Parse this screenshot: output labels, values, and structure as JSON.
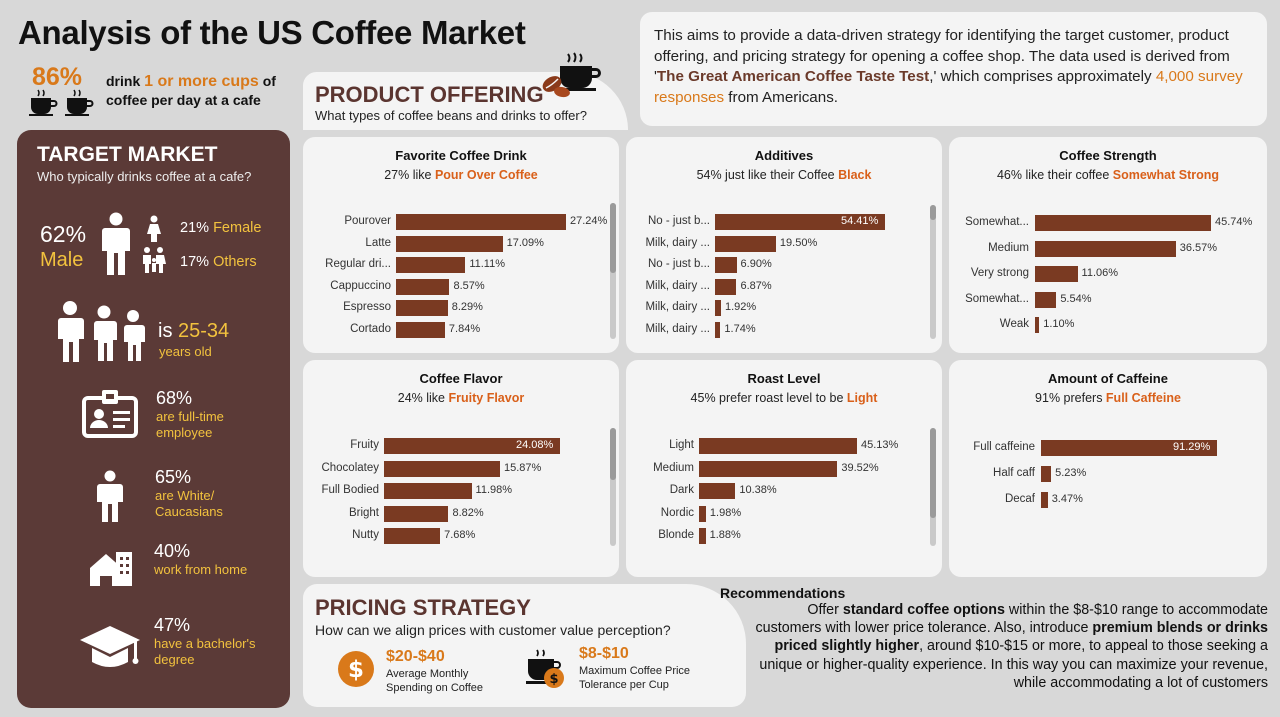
{
  "header": {
    "title": "Analysis of the US Coffee Market",
    "kpi_pct": "86%",
    "kpi_text_pre": "drink ",
    "kpi_text_hl": "1 or more cups",
    "kpi_text_post": " of coffee per day at a cafe",
    "intro_pre": "This aims to provide a data-driven strategy for identifying the target customer, product offering, and pricing strategy for opening a coffee shop. The data used is derived from '",
    "intro_bold": "The Great American Coffee Taste Test",
    "intro_mid": ",' which comprises approximately ",
    "intro_hl": "4,000 survey responses",
    "intro_post": " from Americans."
  },
  "product_offering": {
    "title": "PRODUCT OFFERING",
    "subtitle": "What types of coffee beans and drinks to offer?"
  },
  "target_market": {
    "title": "TARGET MARKET",
    "subtitle": "Who typically drinks coffee at a cafe?",
    "male_pct": "62%",
    "male_label": "Male",
    "female_pct": "21%",
    "female_label": "Female",
    "others_pct": "17%",
    "others_label": "Others",
    "age_pre": "is",
    "age_value": "25-34",
    "age_post": "years old",
    "stats": [
      {
        "pct": "68%",
        "label": "are full-time employee"
      },
      {
        "pct": "65%",
        "label": "are White/ Caucasians"
      },
      {
        "pct": "40%",
        "label": "work from home"
      },
      {
        "pct": "47%",
        "label": "have a bachelor's degree"
      }
    ]
  },
  "chart_data": [
    {
      "type": "bar",
      "title": "Favorite Coffee Drink",
      "subtitle_pre": "27% like",
      "subtitle_hl": "Pour Over Coffee",
      "categories": [
        "Pourover",
        "Latte",
        "Regular dri...",
        "Cappuccino",
        "Espresso",
        "Cortado"
      ],
      "values": [
        27.24,
        17.09,
        11.11,
        8.57,
        8.29,
        7.84
      ],
      "labels": [
        "27.24%",
        "17.09%",
        "11.11%",
        "8.57%",
        "8.29%",
        "7.84%"
      ]
    },
    {
      "type": "bar",
      "title": "Additives",
      "subtitle_pre": "54% just like their Coffee",
      "subtitle_hl": "Black",
      "categories": [
        "No - just b...",
        "Milk, dairy ...",
        "No - just b...",
        "Milk, dairy ...",
        "Milk, dairy ...",
        "Milk, dairy ..."
      ],
      "values": [
        54.41,
        19.5,
        6.9,
        6.87,
        1.92,
        1.74
      ],
      "labels": [
        "54.41%",
        "19.50%",
        "6.90%",
        "6.87%",
        "1.92%",
        "1.74%"
      ]
    },
    {
      "type": "bar",
      "title": "Coffee Strength",
      "subtitle_pre": "46% like their coffee",
      "subtitle_hl": "Somewhat Strong",
      "categories": [
        "Somewhat...",
        "Medium",
        "Very strong",
        "Somewhat...",
        "Weak"
      ],
      "values": [
        45.74,
        36.57,
        11.06,
        5.54,
        1.1
      ],
      "labels": [
        "45.74%",
        "36.57%",
        "11.06%",
        "5.54%",
        "1.10%"
      ]
    },
    {
      "type": "bar",
      "title": "Coffee Flavor",
      "subtitle_pre": "24% like",
      "subtitle_hl": "Fruity Flavor",
      "categories": [
        "Fruity",
        "Chocolatey",
        "Full Bodied",
        "Bright",
        "Nutty"
      ],
      "values": [
        24.08,
        15.87,
        11.98,
        8.82,
        7.68
      ],
      "labels": [
        "24.08%",
        "15.87%",
        "11.98%",
        "8.82%",
        "7.68%"
      ]
    },
    {
      "type": "bar",
      "title": "Roast Level",
      "subtitle_pre": "45% prefer roast level to be",
      "subtitle_hl": "Light",
      "categories": [
        "Light",
        "Medium",
        "Dark",
        "Nordic",
        "Blonde"
      ],
      "values": [
        45.13,
        39.52,
        10.38,
        1.98,
        1.88
      ],
      "labels": [
        "45.13%",
        "39.52%",
        "10.38%",
        "1.98%",
        "1.88%"
      ]
    },
    {
      "type": "bar",
      "title": "Amount of Caffeine",
      "subtitle_pre": "91% prefers",
      "subtitle_hl": "Full Caffeine",
      "categories": [
        "Full caffeine",
        "Half caff",
        "Decaf"
      ],
      "values": [
        91.29,
        5.23,
        3.47
      ],
      "labels": [
        "91.29%",
        "5.23%",
        "3.47%"
      ]
    }
  ],
  "pricing": {
    "title": "PRICING STRATEGY",
    "subtitle": "How can we align prices with customer value perception?",
    "item1_amount": "$20-$40",
    "item1_label": "Average Monthly Spending on Coffee",
    "item2_amount": "$8-$10",
    "item2_label": "Maximum Coffee Price Tolerance per Cup"
  },
  "recommendations": {
    "title": "Recommendations",
    "p1": "Offer ",
    "b1": "standard coffee options",
    "p2": " within the $8-$10 range to accommodate customers with lower price tolerance. Also, introduce ",
    "b2": "premium blends or drinks priced slightly higher",
    "p3": ", around $10-$15 or more, to appeal to those seeking a unique or higher-quality experience. In this way you can maximize your revenue, while accommodating a lot of customers"
  },
  "colors": {
    "accent": "#d9791a",
    "bar": "#7a3a22",
    "panel": "#5b3a37",
    "highlight": "#f2c23e"
  }
}
